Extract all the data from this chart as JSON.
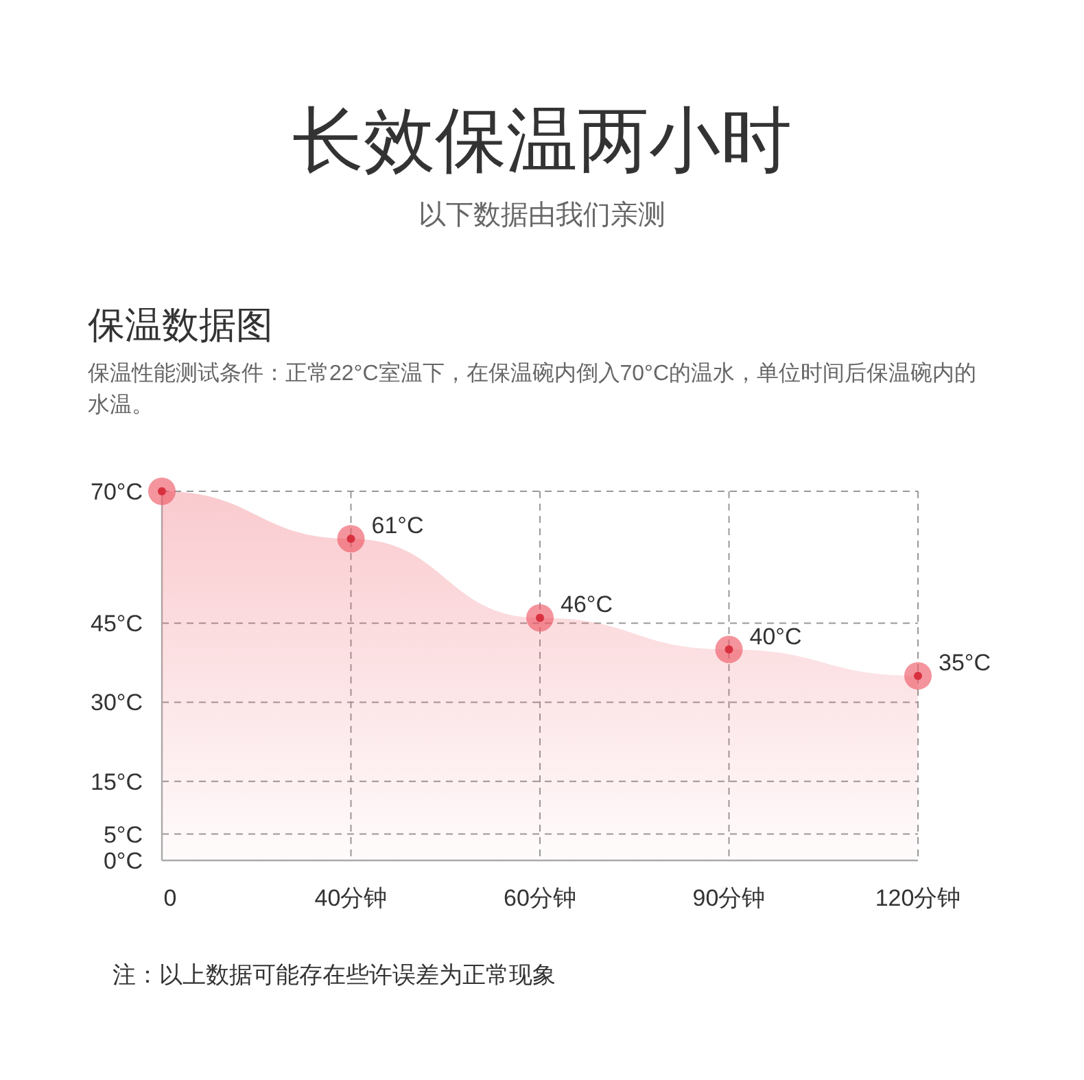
{
  "chart_data": {
    "type": "area",
    "title": "长效保温两小时",
    "subtitle": "以下数据由我们亲测",
    "annotations": [
      "保温数据图",
      "保温性能测试条件：正常22°C室温下，在保温碗内倒入70°C的温水，单位时间后保温碗内的水温。",
      "注：以上数据可能存在些许误差为正常现象"
    ],
    "categories": [
      "0",
      "40分钟",
      "60分钟",
      "90分钟",
      "120分钟"
    ],
    "series": [
      {
        "color": "#ee5a67",
        "values": [
          70,
          61,
          46,
          40,
          35
        ],
        "value_labels": [
          null,
          "61°C",
          "46°C",
          "40°C",
          "35°C"
        ]
      }
    ],
    "ylim": [
      0,
      70
    ],
    "yticks": [
      {
        "value": 0,
        "label": "0°C"
      },
      {
        "value": 5,
        "label": "5°C"
      },
      {
        "value": 15,
        "label": "15°C"
      },
      {
        "value": 30,
        "label": "30°C"
      },
      {
        "value": 45,
        "label": "45°C"
      },
      {
        "value": 70,
        "label": "70°C"
      }
    ],
    "grid": true,
    "marker": "circle"
  }
}
